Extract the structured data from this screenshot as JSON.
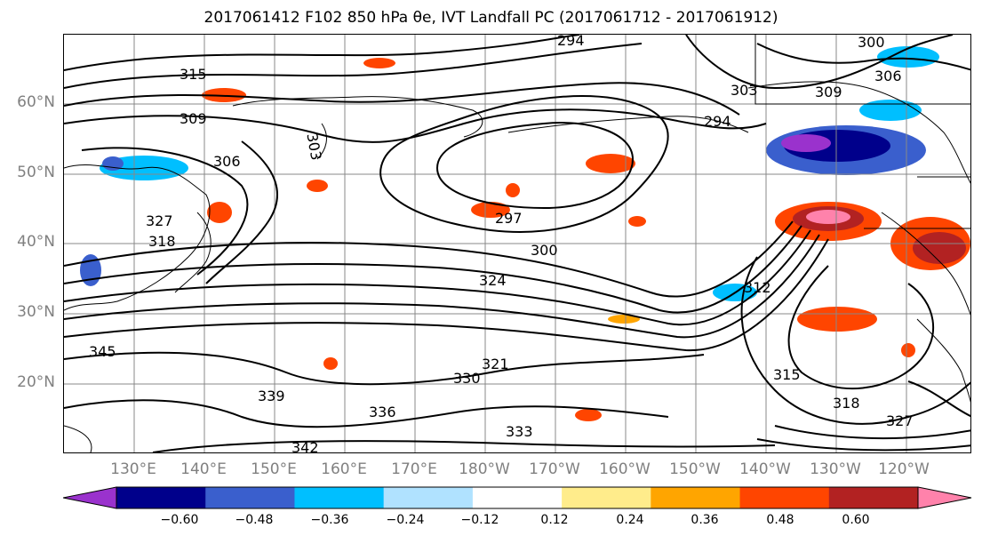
{
  "title": "2017061412 F102 850 hPa θe, IVT Landfall PC (2017061712 - 2017061912)",
  "map": {
    "lat_labels": [
      "60°N",
      "50°N",
      "40°N",
      "30°N",
      "20°N"
    ],
    "lon_labels": [
      "130°E",
      "140°E",
      "150°E",
      "160°E",
      "170°E",
      "180°W",
      "170°W",
      "160°W",
      "150°W",
      "140°W",
      "130°W",
      "120°W"
    ],
    "contour_labels": [
      "315",
      "309",
      "303",
      "306",
      "327",
      "318",
      "345",
      "294",
      "297",
      "300",
      "324",
      "303",
      "300",
      "306",
      "309",
      "294",
      "312",
      "315",
      "318",
      "321",
      "327",
      "330",
      "333",
      "336",
      "339",
      "342"
    ],
    "contour_line_color": "#000000",
    "coastline_color": "#000000",
    "grid_color": "#888888"
  },
  "colorbar": {
    "colors": [
      "#9a32cd",
      "#00008b",
      "#3a5fcd",
      "#00bfff",
      "#b0e2ff",
      "#ffffff",
      "#ffec8b",
      "#ffa500",
      "#ff4500",
      "#b22222",
      "#ff82ab"
    ],
    "tick_labels": [
      "−0.60",
      "−0.48",
      "−0.36",
      "−0.24",
      "−0.12",
      "0.12",
      "0.24",
      "0.36",
      "0.48",
      "0.60"
    ],
    "extend": "both"
  }
}
